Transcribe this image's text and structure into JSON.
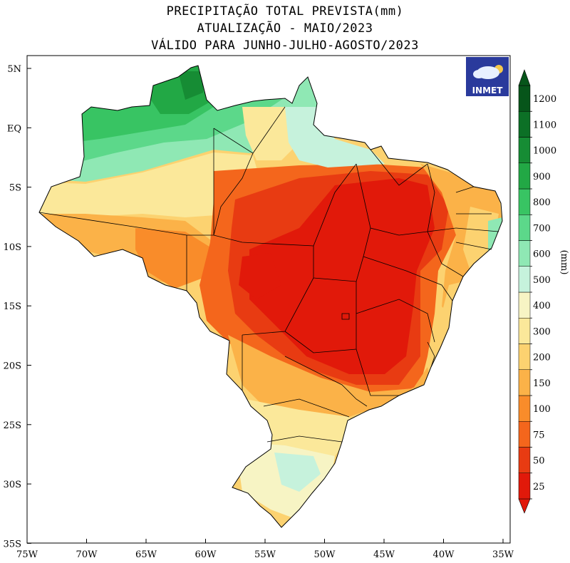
{
  "title": {
    "line1": "PRECIPITAÇÃO TOTAL PREVISTA(mm)",
    "line2": "ATUALIZAÇÃO - MAIO/2023",
    "line3": "VÁLIDO PARA JUNHO-JULHO-AGOSTO/2023"
  },
  "axes": {
    "lat_labels": [
      "5N",
      "EQ",
      "5S",
      "10S",
      "15S",
      "20S",
      "25S",
      "30S",
      "35S"
    ],
    "lon_labels": [
      "75W",
      "70W",
      "65W",
      "60W",
      "55W",
      "50W",
      "45W",
      "40W",
      "35W"
    ]
  },
  "colorbar": {
    "unit_label": "(mm)",
    "levels": [
      "25",
      "50",
      "75",
      "100",
      "150",
      "200",
      "300",
      "400",
      "500",
      "600",
      "700",
      "800",
      "900",
      "1000",
      "1100",
      "1200"
    ],
    "colors": [
      "#e1190a",
      "#e83b12",
      "#f4661c",
      "#f98c2a",
      "#fbb248",
      "#fcd270",
      "#fbe89a",
      "#f7f4c4",
      "#c6f2dc",
      "#8fe8b4",
      "#5cd88a",
      "#38c463",
      "#22a845",
      "#168c34",
      "#0c7026",
      "#06551a"
    ]
  },
  "logo": {
    "text": "INMET",
    "icon": "cloud-sun-logo-icon"
  }
}
